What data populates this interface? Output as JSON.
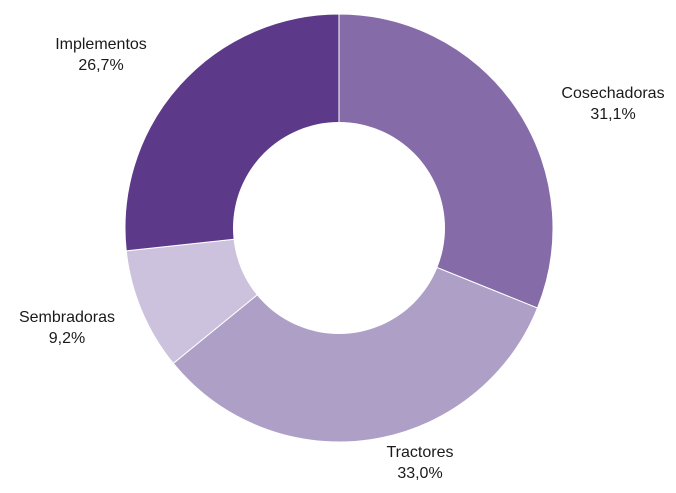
{
  "chart_data": {
    "type": "pie",
    "variant": "donut",
    "title": "",
    "slices": [
      {
        "label": "Cosechadoras",
        "value": 31.1,
        "value_label": "31,1%",
        "color": "#856ca8"
      },
      {
        "label": "Tractores",
        "value": 33.0,
        "value_label": "33,0%",
        "color": "#ae9fc7"
      },
      {
        "label": "Sembradoras",
        "value": 9.2,
        "value_label": "9,2%",
        "color": "#ccc2de"
      },
      {
        "label": "Implementos",
        "value": 26.7,
        "value_label": "26,7%",
        "color": "#5d3a89"
      }
    ],
    "start_angle_deg": 0,
    "direction": "clockwise",
    "legend": "none"
  }
}
